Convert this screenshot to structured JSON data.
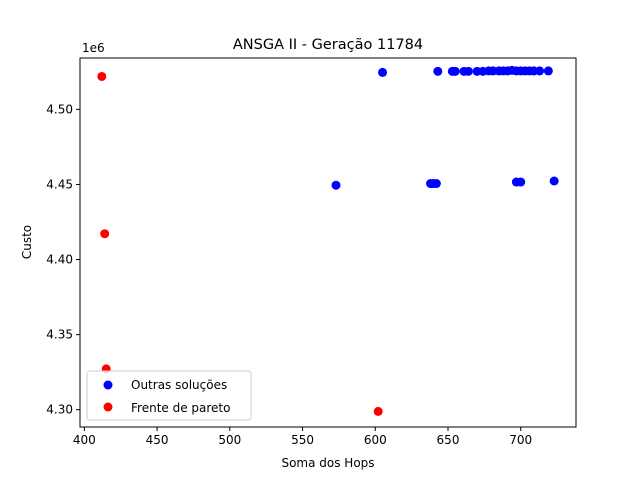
{
  "chart_data": {
    "type": "scatter",
    "title": "ANSGA II - Geração 11784",
    "xlabel": "Soma dos Hops",
    "ylabel": "Custo",
    "offset_text": "1e6",
    "xlim": [
      397,
      738
    ],
    "ylim": [
      4.2885,
      4.5342
    ],
    "xticks": [
      400,
      450,
      500,
      550,
      600,
      650,
      700
    ],
    "yticks": [
      4.3,
      4.35,
      4.4,
      4.45,
      4.5
    ],
    "xtick_labels": [
      "400",
      "450",
      "500",
      "550",
      "600",
      "650",
      "700"
    ],
    "ytick_labels": [
      "4.30",
      "4.35",
      "4.40",
      "4.45",
      "4.50"
    ],
    "grid": false,
    "legend_position": "lower-left",
    "series": [
      {
        "name": "Outras soluções",
        "color": "#0000ff",
        "points": [
          [
            573,
            4.4495
          ],
          [
            605,
            4.5246
          ],
          [
            638,
            4.4506
          ],
          [
            640,
            4.4506
          ],
          [
            642,
            4.4506
          ],
          [
            643,
            4.5253
          ],
          [
            653,
            4.5253
          ],
          [
            655,
            4.5253
          ],
          [
            661,
            4.5253
          ],
          [
            664,
            4.5253
          ],
          [
            670,
            4.5253
          ],
          [
            674,
            4.5253
          ],
          [
            678,
            4.5256
          ],
          [
            681,
            4.5256
          ],
          [
            685,
            4.5256
          ],
          [
            688,
            4.5256
          ],
          [
            691,
            4.5256
          ],
          [
            694,
            4.526
          ],
          [
            697,
            4.5256
          ],
          [
            700,
            4.5256
          ],
          [
            703,
            4.5256
          ],
          [
            706,
            4.5256
          ],
          [
            709,
            4.5256
          ],
          [
            713,
            4.5256
          ],
          [
            719,
            4.5256
          ],
          [
            697,
            4.4516
          ],
          [
            700,
            4.4516
          ],
          [
            723,
            4.4523
          ]
        ]
      },
      {
        "name": "Frente de pareto",
        "color": "#ff0000",
        "points": [
          [
            412,
            4.5219
          ],
          [
            414,
            4.4172
          ],
          [
            415,
            4.3272
          ],
          [
            602,
            4.2989
          ]
        ]
      }
    ]
  }
}
